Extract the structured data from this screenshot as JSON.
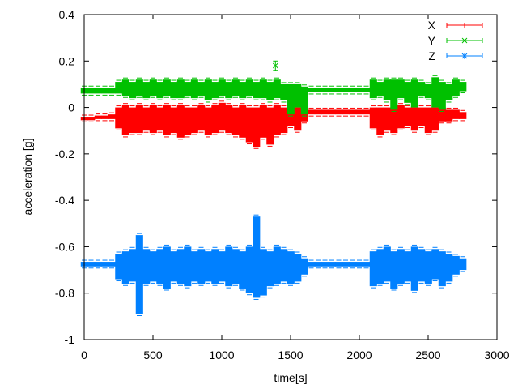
{
  "chart_data": {
    "type": "line",
    "style": "error bars",
    "title": "",
    "xlabel": "time[s]",
    "ylabel": "acceleration [g]",
    "xlim": [
      0,
      3000
    ],
    "ylim": [
      -1,
      0.4
    ],
    "xticks": [
      "0",
      "500",
      "1000",
      "1500",
      "2000",
      "2500",
      "3000"
    ],
    "yticks": [
      "0.4",
      "0.2",
      "0",
      "-0.2",
      "-0.4",
      "-0.6",
      "-0.8",
      "-1"
    ],
    "grid": false,
    "legend_position": "top-right",
    "x": [
      0,
      50,
      100,
      150,
      200,
      250,
      300,
      350,
      400,
      450,
      500,
      550,
      600,
      650,
      700,
      750,
      800,
      850,
      900,
      950,
      1000,
      1050,
      1100,
      1150,
      1200,
      1250,
      1300,
      1350,
      1400,
      1450,
      1500,
      1550,
      1600,
      1650,
      1700,
      1750,
      1800,
      1850,
      1900,
      1950,
      2000,
      2050,
      2100,
      2150,
      2200,
      2250,
      2300,
      2350,
      2400,
      2450,
      2500,
      2550,
      2600,
      2650,
      2700,
      2750
    ],
    "series": [
      {
        "name": "X",
        "color": "#ff0000",
        "marker": "plus",
        "min": [
          -0.055,
          -0.055,
          -0.05,
          -0.05,
          -0.05,
          -0.09,
          -0.12,
          -0.11,
          -0.11,
          -0.1,
          -0.11,
          -0.1,
          -0.12,
          -0.11,
          -0.13,
          -0.12,
          -0.11,
          -0.1,
          -0.12,
          -0.11,
          -0.1,
          -0.11,
          -0.12,
          -0.13,
          -0.15,
          -0.17,
          -0.13,
          -0.16,
          -0.12,
          -0.11,
          -0.08,
          -0.1,
          -0.06,
          -0.03,
          -0.03,
          -0.03,
          -0.03,
          -0.03,
          -0.03,
          -0.03,
          -0.03,
          -0.03,
          -0.09,
          -0.12,
          -0.1,
          -0.11,
          -0.09,
          -0.08,
          -0.1,
          -0.08,
          -0.11,
          -0.1,
          -0.06,
          -0.06,
          -0.05,
          -0.05
        ],
        "max": [
          -0.04,
          -0.04,
          -0.035,
          -0.035,
          -0.03,
          0.0,
          0.01,
          0.0,
          0.01,
          0.0,
          0.01,
          0.0,
          0.01,
          0.0,
          0.01,
          0.0,
          0.0,
          0.01,
          0.0,
          0.01,
          0.02,
          0.01,
          0.0,
          0.01,
          0.0,
          0.0,
          0.01,
          0.0,
          0.01,
          0.0,
          -0.01,
          0.0,
          -0.01,
          -0.01,
          -0.01,
          -0.01,
          -0.01,
          -0.01,
          -0.01,
          -0.01,
          -0.01,
          -0.01,
          0.0,
          0.0,
          0.0,
          0.0,
          0.01,
          0.0,
          0.0,
          0.0,
          0.0,
          0.0,
          0.0,
          -0.01,
          -0.01,
          -0.02
        ],
        "outliers": []
      },
      {
        "name": "Y",
        "color": "#00c000",
        "marker": "cross",
        "min": [
          0.06,
          0.06,
          0.06,
          0.06,
          0.06,
          0.06,
          0.05,
          0.04,
          0.05,
          0.04,
          0.05,
          0.04,
          0.05,
          0.04,
          0.04,
          0.05,
          0.04,
          0.05,
          0.03,
          0.04,
          0.05,
          0.04,
          0.05,
          0.04,
          0.05,
          0.04,
          0.04,
          0.03,
          0.04,
          0.03,
          -0.03,
          0.0,
          -0.03,
          0.065,
          0.065,
          0.065,
          0.065,
          0.065,
          0.065,
          0.065,
          0.065,
          0.065,
          0.04,
          0.05,
          0.03,
          -0.01,
          0.04,
          0.02,
          0.0,
          0.05,
          0.04,
          0.0,
          -0.01,
          0.03,
          0.05,
          0.07
        ],
        "max": [
          0.085,
          0.085,
          0.085,
          0.085,
          0.085,
          0.11,
          0.12,
          0.11,
          0.12,
          0.11,
          0.12,
          0.11,
          0.12,
          0.11,
          0.12,
          0.11,
          0.12,
          0.11,
          0.12,
          0.11,
          0.12,
          0.11,
          0.12,
          0.11,
          0.12,
          0.11,
          0.12,
          0.11,
          0.12,
          0.1,
          0.1,
          0.1,
          0.09,
          0.085,
          0.085,
          0.085,
          0.085,
          0.085,
          0.085,
          0.085,
          0.085,
          0.085,
          0.12,
          0.11,
          0.12,
          0.12,
          0.12,
          0.11,
          0.12,
          0.11,
          0.1,
          0.13,
          0.11,
          0.1,
          0.12,
          0.11
        ],
        "outliers": [
          {
            "x": 1390,
            "y": 0.18,
            "low": 0.16,
            "high": 0.2
          }
        ]
      },
      {
        "name": "Z",
        "color": "#0080ff",
        "marker": "star",
        "min": [
          -0.685,
          -0.685,
          -0.685,
          -0.685,
          -0.685,
          -0.74,
          -0.76,
          -0.75,
          -0.89,
          -0.76,
          -0.75,
          -0.76,
          -0.78,
          -0.75,
          -0.76,
          -0.77,
          -0.75,
          -0.76,
          -0.75,
          -0.76,
          -0.75,
          -0.77,
          -0.76,
          -0.78,
          -0.8,
          -0.82,
          -0.81,
          -0.77,
          -0.76,
          -0.75,
          -0.76,
          -0.75,
          -0.72,
          -0.685,
          -0.685,
          -0.685,
          -0.685,
          -0.685,
          -0.685,
          -0.685,
          -0.685,
          -0.685,
          -0.77,
          -0.76,
          -0.75,
          -0.78,
          -0.76,
          -0.75,
          -0.79,
          -0.75,
          -0.76,
          -0.74,
          -0.77,
          -0.75,
          -0.72,
          -0.7
        ],
        "max": [
          -0.665,
          -0.665,
          -0.665,
          -0.665,
          -0.665,
          -0.63,
          -0.62,
          -0.61,
          -0.55,
          -0.61,
          -0.62,
          -0.61,
          -0.6,
          -0.62,
          -0.61,
          -0.6,
          -0.62,
          -0.61,
          -0.62,
          -0.61,
          -0.62,
          -0.6,
          -0.61,
          -0.62,
          -0.6,
          -0.47,
          -0.61,
          -0.62,
          -0.6,
          -0.61,
          -0.62,
          -0.63,
          -0.65,
          -0.665,
          -0.665,
          -0.665,
          -0.665,
          -0.665,
          -0.665,
          -0.665,
          -0.665,
          -0.665,
          -0.62,
          -0.61,
          -0.6,
          -0.62,
          -0.61,
          -0.62,
          -0.6,
          -0.61,
          -0.62,
          -0.61,
          -0.62,
          -0.63,
          -0.64,
          -0.65
        ],
        "outliers": []
      }
    ]
  }
}
